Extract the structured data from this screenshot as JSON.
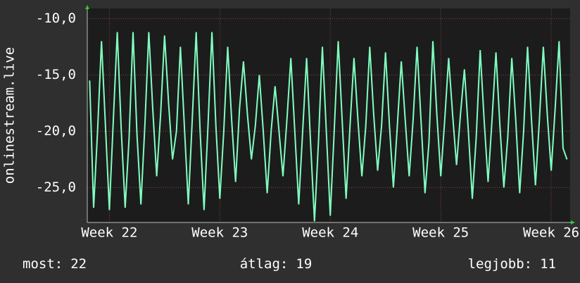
{
  "chart_data": {
    "type": "line",
    "y_label": "onlinestream.live",
    "x": [
      -1.25,
      -1,
      -0.75,
      -0.5,
      -0.25,
      0,
      0.25,
      0.5,
      0.75,
      1,
      1.25,
      1.5,
      1.75,
      2,
      2.25,
      2.5,
      2.75,
      3,
      3.25,
      3.5,
      3.75,
      4,
      4.25,
      4.5,
      4.75,
      5,
      5.25,
      5.5,
      5.75,
      6,
      6.25,
      6.5,
      6.75,
      7,
      7.25,
      7.5,
      7.75,
      8,
      8.25,
      8.5,
      8.75,
      9,
      9.25,
      9.5,
      9.75,
      10,
      10.25,
      10.5,
      10.75,
      11,
      11.25,
      11.5,
      11.75,
      12,
      12.25,
      12.5,
      12.75,
      13,
      13.25,
      13.5,
      13.75,
      14,
      14.25,
      14.5,
      14.75,
      15,
      15.25,
      15.5,
      15.75,
      16,
      16.25,
      16.5,
      16.75,
      17,
      17.25,
      17.5,
      17.75,
      18,
      18.25,
      18.5,
      18.75,
      19,
      19.25,
      19.5,
      19.75,
      20,
      20.25,
      20.5,
      20.75,
      21,
      21.25,
      21.5,
      21.75,
      22,
      22.25,
      22.5,
      22.75,
      23,
      23.25,
      23.5,
      23.75,
      24,
      24.25,
      24.5,
      24.75,
      25,
      25.25,
      25.5,
      25.75,
      26,
      26.25,
      26.5,
      26.75,
      27,
      27.25,
      27.5,
      27.75,
      28,
      28.25,
      28.5,
      28.75,
      29
    ],
    "series": [
      {
        "name": "onlinestream.live",
        "color": "#80ffc0",
        "values": [
          -15.5,
          -26.8,
          -20,
          -12,
          -19.5,
          -27,
          -19,
          -11.2,
          -19.8,
          -26.8,
          -20.6,
          -11.2,
          -20.3,
          -26.5,
          -19.5,
          -11.2,
          -18,
          -24,
          -18.5,
          -11.5,
          -17.5,
          -22.5,
          -20,
          -12.5,
          -19.5,
          -26.5,
          -19,
          -11.2,
          -20,
          -27,
          -19.5,
          -11.2,
          -19.5,
          -26,
          -20,
          -12.5,
          -19,
          -24.5,
          -18,
          -13.8,
          -18.5,
          -22.5,
          -19.5,
          -15,
          -20,
          -25.5,
          -20,
          -16,
          -20,
          -24,
          -19,
          -13.5,
          -20,
          -26.5,
          -20,
          -13.5,
          -21,
          -28,
          -21,
          -12.5,
          -20,
          -27.5,
          -20,
          -12,
          -19,
          -26,
          -19.5,
          -13.5,
          -19,
          -24,
          -19.5,
          -12.5,
          -18.5,
          -23.5,
          -19.5,
          -13,
          -19.5,
          -25,
          -19.5,
          -13.8,
          -19,
          -24,
          -19,
          -12.5,
          -19,
          -25.5,
          -21,
          -12,
          -18.5,
          -24,
          -19,
          -13.5,
          -18.5,
          -23,
          -18.5,
          -14.5,
          -20,
          -26,
          -20.5,
          -12.8,
          -19,
          -24.5,
          -19,
          -13,
          -19.5,
          -25,
          -20.5,
          -13.5,
          -19,
          -25.5,
          -20,
          -12.5,
          -19,
          -24.8,
          -19,
          -12.5,
          -18.5,
          -23.5,
          -18,
          -12,
          -21.5,
          -22.5
        ]
      }
    ],
    "xlim": [
      -1.4,
      29.2
    ],
    "xticks": [
      {
        "value": 0,
        "label": "Week 22"
      },
      {
        "value": 7,
        "label": "Week 23"
      },
      {
        "value": 14,
        "label": "Week 24"
      },
      {
        "value": 21,
        "label": "Week 25"
      },
      {
        "value": 28,
        "label": "Week 26"
      }
    ],
    "ylim": [
      -28.1,
      -9.1
    ],
    "yticks": [
      {
        "value": -25,
        "label": "-25,0"
      },
      {
        "value": -20,
        "label": "-20,0"
      },
      {
        "value": -15,
        "label": "-15,0"
      },
      {
        "value": -10,
        "label": "-10,0"
      }
    ],
    "grid": true,
    "stats": [
      {
        "label": "most:",
        "value": 22
      },
      {
        "label": "átlag:",
        "value": 19
      },
      {
        "label": "legjobb:",
        "value": 11
      }
    ]
  }
}
